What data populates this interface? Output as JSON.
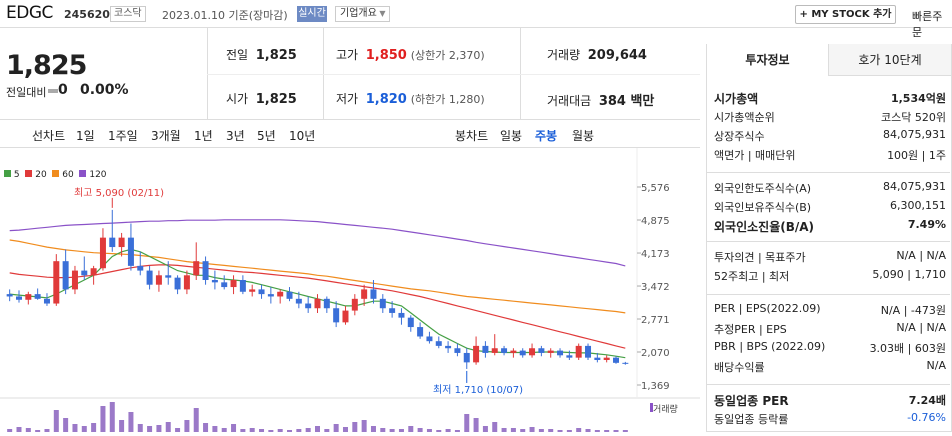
{
  "header": {
    "name": "EDGC",
    "code": "245620",
    "market": "코스닥",
    "date": "2023.01.10 기준(장마감)",
    "live": "실시간",
    "corp_info": "기업개요",
    "my_stock": "+ MY STOCK 추가",
    "quick_order": "빠른주문"
  },
  "price": {
    "current": "1,825",
    "compare_label": "전일대비",
    "compare_value": "0",
    "compare_pct": "0.00%"
  },
  "quote": {
    "prev_label": "전일",
    "prev": "1,825",
    "high_label": "고가",
    "high": "1,850",
    "upper_limit": "(상한가 2,370)",
    "volume_label": "거래량",
    "volume": "209,644",
    "open_label": "시가",
    "open": "1,825",
    "low_label": "저가",
    "low": "1,820",
    "lower_limit": "(하한가 1,280)",
    "amount_label": "거래대금",
    "amount": "384 백만"
  },
  "line_tabs": {
    "label": "선차트",
    "items": [
      "1일",
      "1주일",
      "3개월",
      "1년",
      "3년",
      "5년",
      "10년"
    ]
  },
  "candle_tabs": {
    "label": "봉차트",
    "items": [
      "일봉",
      "주봉",
      "월봉"
    ],
    "active": "주봉"
  },
  "legend": {
    "ma5": "5",
    "ma20": "20",
    "ma60": "60",
    "ma120": "120",
    "volume": "거래량"
  },
  "annotations": {
    "high": "최고 5,090 (02/11)",
    "low": "최저 1,710 (10/07)"
  },
  "chart_data": {
    "type": "candlestick",
    "y_ticks": [
      "5,576",
      "4,875",
      "4,173",
      "3,472",
      "2,771",
      "2,070",
      "1,369"
    ],
    "ylim": [
      1369,
      5576
    ],
    "ma_colors": {
      "ma5": "#45a045",
      "ma20": "#e03a3a",
      "ma60": "#f08c1e",
      "ma120": "#8a52c8"
    },
    "candles": [
      [
        3300,
        3400,
        3150,
        3250
      ],
      [
        3250,
        3380,
        3120,
        3180
      ],
      [
        3180,
        3350,
        3080,
        3300
      ],
      [
        3300,
        3420,
        3180,
        3200
      ],
      [
        3200,
        3320,
        3050,
        3100
      ],
      [
        3100,
        4150,
        3050,
        4000
      ],
      [
        4000,
        4250,
        3300,
        3400
      ],
      [
        3400,
        3900,
        3300,
        3800
      ],
      [
        3800,
        4100,
        3600,
        3700
      ],
      [
        3700,
        3900,
        3500,
        3850
      ],
      [
        3850,
        4700,
        3800,
        4500
      ],
      [
        4500,
        5090,
        4200,
        4300
      ],
      [
        4300,
        4600,
        4100,
        4500
      ],
      [
        4500,
        4800,
        3800,
        3900
      ],
      [
        3900,
        4200,
        3700,
        3800
      ],
      [
        3800,
        3900,
        3400,
        3500
      ],
      [
        3500,
        3800,
        3350,
        3700
      ],
      [
        3700,
        4000,
        3500,
        3650
      ],
      [
        3650,
        3700,
        3300,
        3400
      ],
      [
        3400,
        3800,
        3300,
        3700
      ],
      [
        3700,
        4400,
        3600,
        4000
      ],
      [
        4000,
        4100,
        3500,
        3600
      ],
      [
        3600,
        3800,
        3400,
        3550
      ],
      [
        3550,
        3700,
        3400,
        3450
      ],
      [
        3450,
        3700,
        3300,
        3600
      ],
      [
        3600,
        3700,
        3300,
        3350
      ],
      [
        3350,
        3500,
        3250,
        3400
      ],
      [
        3400,
        3500,
        3200,
        3300
      ],
      [
        3300,
        3450,
        3100,
        3250
      ],
      [
        3250,
        3400,
        3100,
        3350
      ],
      [
        3350,
        3450,
        3150,
        3200
      ],
      [
        3200,
        3350,
        3000,
        3100
      ],
      [
        3100,
        3250,
        2900,
        3000
      ],
      [
        3000,
        3300,
        2900,
        3200
      ],
      [
        3200,
        3250,
        2900,
        3000
      ],
      [
        3000,
        3150,
        2600,
        2700
      ],
      [
        2700,
        3050,
        2650,
        2950
      ],
      [
        2950,
        3300,
        2850,
        3200
      ],
      [
        3200,
        3500,
        3050,
        3400
      ],
      [
        3400,
        3600,
        3100,
        3200
      ],
      [
        3200,
        3300,
        2900,
        3000
      ],
      [
        3000,
        3150,
        2800,
        2900
      ],
      [
        2900,
        3000,
        2650,
        2800
      ],
      [
        2800,
        2850,
        2500,
        2600
      ],
      [
        2600,
        2700,
        2350,
        2400
      ],
      [
        2400,
        2500,
        2250,
        2300
      ],
      [
        2300,
        2400,
        2150,
        2200
      ],
      [
        2200,
        2300,
        2050,
        2150
      ],
      [
        2150,
        2250,
        1980,
        2050
      ],
      [
        2050,
        2150,
        1710,
        1850
      ],
      [
        1850,
        2400,
        1800,
        2200
      ],
      [
        2200,
        2300,
        1950,
        2050
      ],
      [
        2050,
        2450,
        2000,
        2150
      ],
      [
        2150,
        2200,
        2000,
        2050
      ],
      [
        2050,
        2150,
        1950,
        2100
      ],
      [
        2100,
        2150,
        1950,
        2000
      ],
      [
        2000,
        2250,
        1950,
        2150
      ],
      [
        2150,
        2200,
        1980,
        2050
      ],
      [
        2050,
        2150,
        1950,
        2100
      ],
      [
        2100,
        2150,
        1950,
        2000
      ],
      [
        2000,
        2100,
        1900,
        1950
      ],
      [
        1950,
        2250,
        1900,
        2200
      ],
      [
        2200,
        2250,
        1900,
        1950
      ],
      [
        1950,
        2050,
        1850,
        1900
      ],
      [
        1900,
        2000,
        1850,
        1950
      ],
      [
        1950,
        1980,
        1820,
        1840
      ],
      [
        1840,
        1860,
        1800,
        1825
      ]
    ],
    "ma120": [
      4650,
      4660,
      4680,
      4700,
      4720,
      4740,
      4760,
      4770,
      4780,
      4790,
      4800,
      4810,
      4820,
      4830,
      4840,
      4850,
      4850,
      4860,
      4860,
      4870,
      4870,
      4870,
      4870,
      4880,
      4880,
      4880,
      4880,
      4880,
      4880,
      4880,
      4870,
      4860,
      4850,
      4840,
      4820,
      4800,
      4780,
      4760,
      4740,
      4720,
      4700,
      4680,
      4650,
      4620,
      4590,
      4560,
      4530,
      4500,
      4470,
      4440,
      4400,
      4370,
      4340,
      4310,
      4280,
      4250,
      4220,
      4190,
      4160,
      4130,
      4100,
      4070,
      4040,
      4010,
      3980,
      3950,
      3900
    ],
    "ma60": [
      4450,
      4420,
      4380,
      4340,
      4300,
      4270,
      4240,
      4220,
      4200,
      4180,
      4170,
      4160,
      4150,
      4140,
      4120,
      4100,
      4080,
      4050,
      4020,
      3990,
      3970,
      3950,
      3930,
      3910,
      3890,
      3870,
      3850,
      3830,
      3810,
      3790,
      3770,
      3750,
      3730,
      3700,
      3680,
      3650,
      3620,
      3590,
      3560,
      3530,
      3500,
      3470,
      3440,
      3410,
      3390,
      3370,
      3340,
      3310,
      3280,
      3250,
      3230,
      3210,
      3190,
      3170,
      3150,
      3130,
      3110,
      3090,
      3070,
      3050,
      3030,
      3010,
      2990,
      2970,
      2950,
      2930,
      2900
    ],
    "ma20": [
      3750,
      3720,
      3700,
      3680,
      3660,
      3650,
      3650,
      3660,
      3680,
      3700,
      3740,
      3780,
      3820,
      3860,
      3890,
      3910,
      3920,
      3920,
      3910,
      3890,
      3870,
      3850,
      3830,
      3810,
      3790,
      3770,
      3760,
      3740,
      3720,
      3700,
      3680,
      3660,
      3640,
      3610,
      3580,
      3550,
      3520,
      3490,
      3460,
      3430,
      3400,
      3370,
      3330,
      3290,
      3250,
      3200,
      3150,
      3100,
      3050,
      3000,
      2950,
      2900,
      2850,
      2800,
      2750,
      2700,
      2650,
      2600,
      2550,
      2500,
      2450,
      2400,
      2350,
      2300,
      2250,
      2200,
      2150
    ],
    "ma5": [
      3300,
      3280,
      3260,
      3240,
      3220,
      3300,
      3400,
      3500,
      3600,
      3700,
      3900,
      4100,
      4200,
      4250,
      4200,
      4100,
      4000,
      3900,
      3800,
      3750,
      3700,
      3700,
      3650,
      3620,
      3600,
      3580,
      3550,
      3500,
      3450,
      3400,
      3350,
      3300,
      3250,
      3200,
      3150,
      3100,
      3050,
      3050,
      3100,
      3150,
      3150,
      3100,
      3050,
      2900,
      2750,
      2600,
      2450,
      2350,
      2250,
      2150,
      2100,
      2080,
      2070,
      2060,
      2060,
      2060,
      2060,
      2070,
      2070,
      2070,
      2060,
      2050,
      2050,
      2030,
      2010,
      1980,
      1950
    ]
  },
  "invest": {
    "tab1": "투자정보",
    "tab2": "호가 10단계",
    "rows1": [
      {
        "l": "시가총액",
        "r": "1,534억원",
        "bold": true
      },
      {
        "l": "시가총액순위",
        "r": "코스닥 520위"
      },
      {
        "l": "상장주식수",
        "r": "84,075,931"
      },
      {
        "l": "액면가 | 매매단위",
        "r": "100원 | 1주"
      }
    ],
    "rows2": [
      {
        "l": "외국인한도주식수(A)",
        "r": "84,075,931"
      },
      {
        "l": "외국인보유주식수(B)",
        "r": "6,300,151"
      },
      {
        "l": "외국인소진율(B/A)",
        "r": "7.49%",
        "bold": true
      }
    ],
    "rows3": [
      {
        "l": "투자의견 | 목표주가",
        "r": "N/A | N/A"
      },
      {
        "l": "52주최고 | 최저",
        "r": "5,090 | 1,710"
      }
    ],
    "rows4": [
      {
        "l": "PER | EPS(2022.09)",
        "r": "N/A | -473원"
      },
      {
        "l": "추정PER | EPS",
        "r": "N/A | N/A"
      },
      {
        "l": "PBR | BPS (2022.09)",
        "r": "3.03배 | 603원"
      },
      {
        "l": "배당수익률",
        "r": "N/A"
      }
    ],
    "rows5": [
      {
        "l": "동일업종 PER",
        "r": "7.24배",
        "bold": true
      },
      {
        "l": "동일업종 등락률",
        "r": "-0.76%",
        "blue": true
      }
    ]
  }
}
